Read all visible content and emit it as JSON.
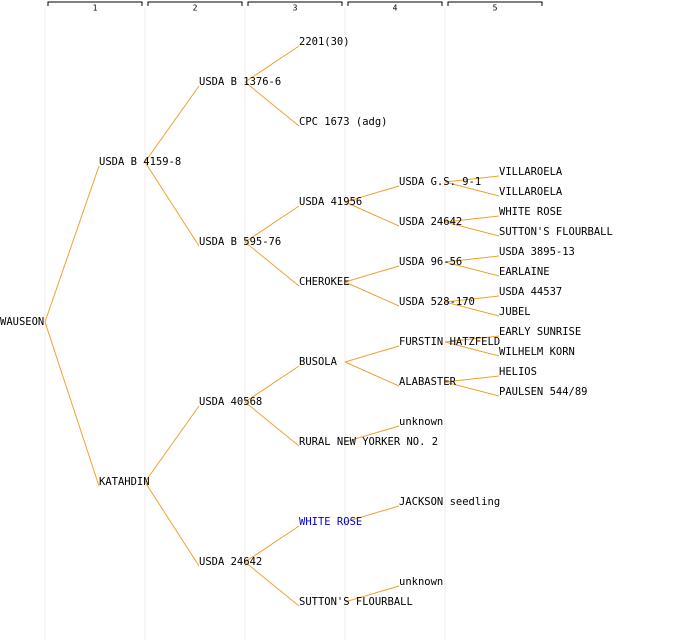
{
  "columns": [
    "1",
    "2",
    "3",
    "4",
    "5"
  ],
  "tree": {
    "label": "WAUSEON",
    "parents": [
      {
        "label": "USDA B 4159-8",
        "parents": [
          {
            "label": "USDA B 1376-6",
            "parents": [
              {
                "label": "2201(30)",
                "parents": []
              },
              {
                "label": "CPC 1673 (adg)",
                "parents": []
              }
            ]
          },
          {
            "label": "USDA B 595-76",
            "parents": [
              {
                "label": "USDA 41956",
                "parents": [
                  {
                    "label": "USDA G.S. 9-1",
                    "parents": [
                      {
                        "label": "VILLAROELA",
                        "parents": []
                      },
                      {
                        "label": "VILLAROELA",
                        "parents": []
                      }
                    ]
                  },
                  {
                    "label": "USDA 24642",
                    "parents": [
                      {
                        "label": "WHITE ROSE",
                        "parents": []
                      },
                      {
                        "label": "SUTTON'S FLOURBALL",
                        "parents": []
                      }
                    ]
                  }
                ]
              },
              {
                "label": "CHEROKEE",
                "parents": [
                  {
                    "label": "USDA 96-56",
                    "parents": [
                      {
                        "label": "USDA 3895-13",
                        "parents": []
                      },
                      {
                        "label": "EARLAINE",
                        "parents": []
                      }
                    ]
                  },
                  {
                    "label": "USDA 528-170",
                    "parents": [
                      {
                        "label": "USDA 44537",
                        "parents": []
                      },
                      {
                        "label": "JUBEL",
                        "parents": []
                      }
                    ]
                  }
                ]
              }
            ]
          }
        ]
      },
      {
        "label": "KATAHDIN",
        "parents": [
          {
            "label": "USDA 40568",
            "parents": [
              {
                "label": "BUSOLA",
                "parents": [
                  {
                    "label": "FURSTIN HATZFELD",
                    "parents": [
                      {
                        "label": "EARLY SUNRISE",
                        "parents": []
                      },
                      {
                        "label": "WILHELM KORN",
                        "parents": []
                      }
                    ]
                  },
                  {
                    "label": "ALABASTER",
                    "parents": [
                      {
                        "label": "HELIOS",
                        "parents": []
                      },
                      {
                        "label": "PAULSEN 544/89",
                        "parents": []
                      }
                    ]
                  }
                ]
              },
              {
                "label": "RURAL NEW YORKER NO. 2",
                "parents": [
                  {
                    "label": "unknown",
                    "parents": []
                  },
                  null
                ]
              }
            ]
          },
          {
            "label": "USDA 24642",
            "parents": [
              {
                "label": "WHITE ROSE",
                "color": "#0000cc",
                "parents": [
                  {
                    "label": "JACKSON seedling",
                    "parents": []
                  },
                  null
                ]
              },
              {
                "label": "SUTTON'S FLOURBALL",
                "parents": [
                  {
                    "label": "unknown",
                    "parents": []
                  },
                  null
                ]
              }
            ]
          }
        ]
      }
    ]
  }
}
